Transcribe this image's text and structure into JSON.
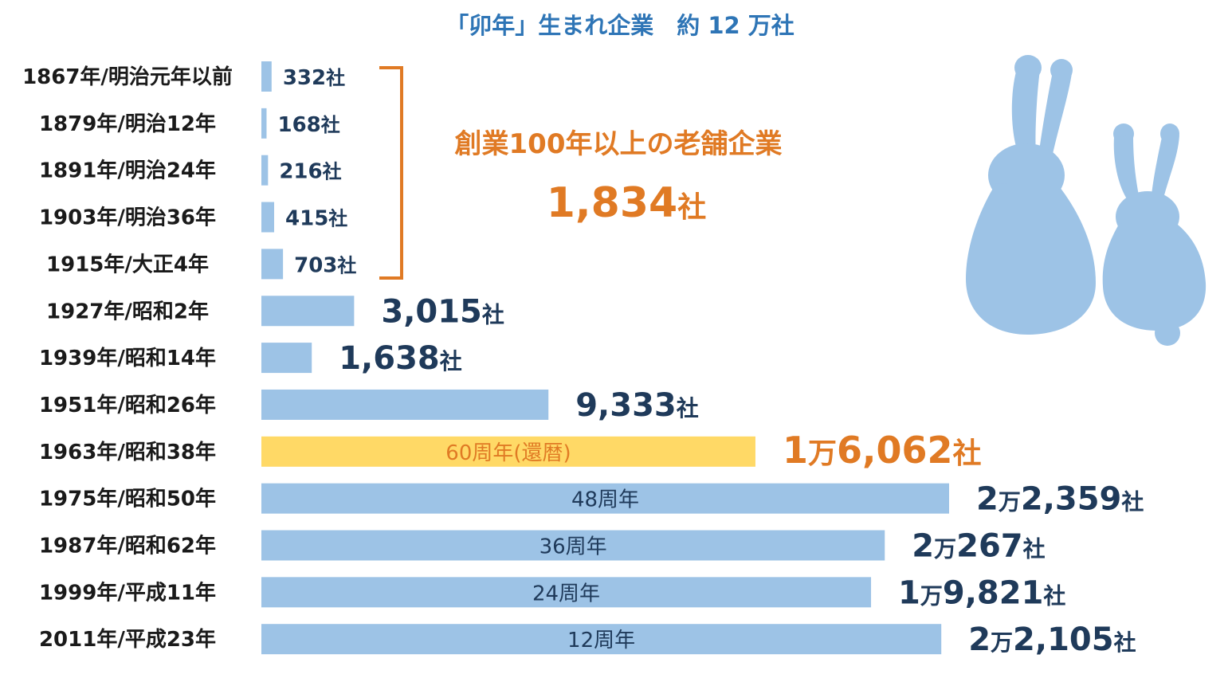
{
  "chart_data": {
    "type": "bar",
    "orientation": "horizontal",
    "title": "「卯年」生まれ企業　約 12 万社",
    "xlabel": "",
    "ylabel": "",
    "categories": [
      "1867年/明治元年以前",
      "1879年/明治12年",
      "1891年/明治24年",
      "1903年/明治36年",
      "1915年/大正4年",
      "1927年/昭和2年",
      "1939年/昭和14年",
      "1951年/昭和26年",
      "1963年/昭和38年",
      "1975年/昭和50年",
      "1987年/昭和62年",
      "1999年/平成11年",
      "2011年/平成23年"
    ],
    "values": [
      332,
      168,
      216,
      415,
      703,
      3015,
      1638,
      9333,
      16062,
      22359,
      20267,
      19821,
      22105
    ],
    "data_labels": [
      "332社",
      "168社",
      "216社",
      "415社",
      "703社",
      "3,015社",
      "1,638社",
      "9,333社",
      "1万6,062社",
      "2万2,359社",
      "2万267社",
      "1万9,821社",
      "2万2,105社"
    ],
    "bar_inner_labels": [
      "",
      "",
      "",
      "",
      "",
      "",
      "",
      "",
      "60周年(還暦)",
      "48周年",
      "36周年",
      "24周年",
      "12周年"
    ],
    "highlight_index": 8,
    "colors": {
      "bar": "#9dc3e6",
      "highlight_bar": "#ffd966",
      "accent": "#e07a24",
      "title": "#2e75b6",
      "value_text": "#1f3a5a",
      "rabbit": "#9dc3e6"
    },
    "annotation": {
      "label": "創業100年以上の老舗企業",
      "value": "1,834社",
      "spans_categories": [
        0,
        4
      ]
    },
    "grid": false,
    "legend": "none"
  },
  "decoration": {
    "icon": "two-rabbits-silhouette-icon"
  }
}
